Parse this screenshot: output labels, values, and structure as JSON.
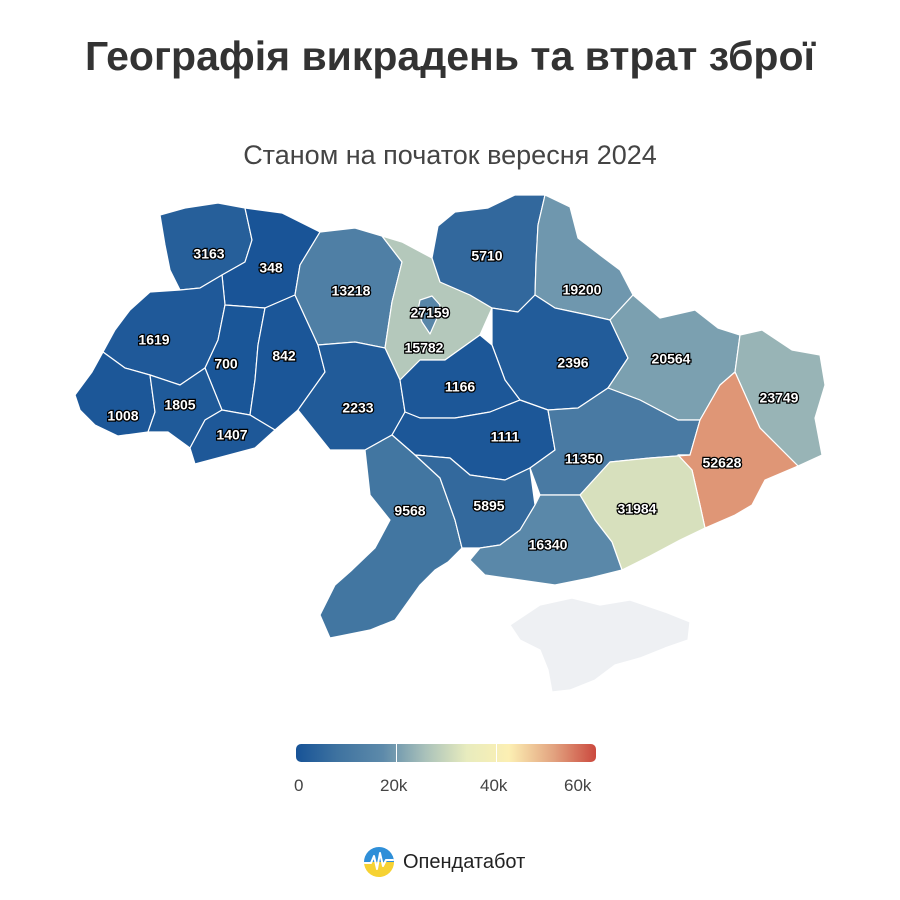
{
  "title": "Географія викрадень та втрат зброї",
  "subtitle": "Станом на початок вересня 2024",
  "colors": {
    "scale": [
      "#175397",
      "#3f73a0",
      "#5d8aaa",
      "#a9c1ba",
      "#e8ecbe",
      "#fcefb3",
      "#e2a27f",
      "#cb493e"
    ],
    "no_data": "#eef0f3",
    "label_fill": "#ffffff",
    "label_stroke": "#000000"
  },
  "legend": {
    "min": 0,
    "max": 60000,
    "ticks": [
      "0",
      "20k",
      "40k",
      "60k"
    ]
  },
  "regions": [
    {
      "name": "Volyn",
      "value": 3163,
      "label": "3163"
    },
    {
      "name": "Rivne",
      "value": 348,
      "label": "348"
    },
    {
      "name": "Lviv",
      "value": 1619,
      "label": "1619"
    },
    {
      "name": "Ternopil",
      "value": 700,
      "label": "700"
    },
    {
      "name": "Khmelnytskyi",
      "value": 842,
      "label": "842"
    },
    {
      "name": "Zakarpattia",
      "value": 1008,
      "label": "1008"
    },
    {
      "name": "Ivano-Frankivsk",
      "value": 1805,
      "label": "1805"
    },
    {
      "name": "Chernivtsi",
      "value": 1407,
      "label": "1407"
    },
    {
      "name": "Zhytomyr",
      "value": 13218,
      "label": "13218"
    },
    {
      "name": "Kyiv City",
      "value": 27159,
      "label": "27159"
    },
    {
      "name": "Kyiv",
      "value": 15782,
      "label": "15782"
    },
    {
      "name": "Chernihiv",
      "value": 5710,
      "label": "5710"
    },
    {
      "name": "Sumy",
      "value": 19200,
      "label": "19200"
    },
    {
      "name": "Poltava",
      "value": 2396,
      "label": "2396"
    },
    {
      "name": "Kharkiv",
      "value": 20564,
      "label": "20564"
    },
    {
      "name": "Luhansk",
      "value": 23749,
      "label": "23749"
    },
    {
      "name": "Vinnytsia",
      "value": 2233,
      "label": "2233"
    },
    {
      "name": "Cherkasy",
      "value": 1166,
      "label": "1166"
    },
    {
      "name": "Kirovohrad",
      "value": 1111,
      "label": "1111"
    },
    {
      "name": "Dnipropetrovsk",
      "value": 11350,
      "label": "11350"
    },
    {
      "name": "Donetsk",
      "value": 52628,
      "label": "52628"
    },
    {
      "name": "Zaporizhzhia",
      "value": 31984,
      "label": "31984"
    },
    {
      "name": "Odesa",
      "value": 9568,
      "label": "9568"
    },
    {
      "name": "Mykolaiv",
      "value": 5895,
      "label": "5895"
    },
    {
      "name": "Kherson",
      "value": 16340,
      "label": "16340"
    },
    {
      "name": "Crimea",
      "value": null,
      "label": ""
    }
  ],
  "brand": {
    "name": "Опендатабот",
    "logo_icon": "opendatabot-logo-icon"
  }
}
